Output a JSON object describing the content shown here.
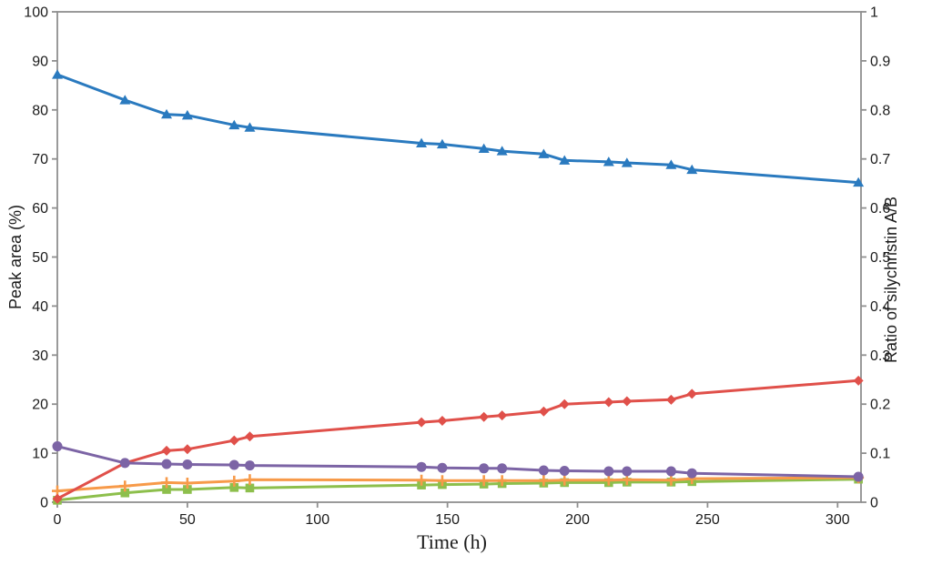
{
  "figure": {
    "background": "#ffffff",
    "axis_line_color": "#8f8f8f",
    "tick_text_color": "#1c1c1c"
  },
  "chart_data": {
    "type": "line",
    "title": "",
    "xlabel": "Time (h)",
    "ylabel_left": "Peak area (%)",
    "ylabel_right": "Ratio of silychristin A/B",
    "xlim": [
      0,
      309
    ],
    "ylim_left": [
      0,
      100
    ],
    "ylim_right": [
      0,
      1
    ],
    "grid": false,
    "legend": "none",
    "x_ticks": [
      0,
      50,
      100,
      150,
      200,
      250,
      300
    ],
    "y_ticks_left": [
      "0",
      "10",
      "20",
      "30",
      "40",
      "50",
      "60",
      "70",
      "80",
      "90",
      "100"
    ],
    "y_ticks_right": [
      "0",
      "0.1",
      "0.2",
      "0.3",
      "0.4",
      "0.5",
      "0.6",
      "0.7",
      "0.8",
      "0.9",
      "1"
    ],
    "x": [
      0,
      26,
      42,
      50,
      68,
      74,
      140,
      148,
      164,
      171,
      187,
      195,
      212,
      219,
      236,
      244,
      308
    ],
    "series": [
      {
        "name": "green-square-series",
        "marker": "square",
        "color": "#8DBF4C",
        "axis": "left",
        "values": [
          0.4,
          1.9,
          2.6,
          2.6,
          3.0,
          2.9,
          3.5,
          3.6,
          3.7,
          3.8,
          3.9,
          4.0,
          4.0,
          4.1,
          4.1,
          4.2,
          4.7
        ]
      },
      {
        "name": "orange-plus-series",
        "marker": "plus",
        "color": "#F79A49",
        "axis": "left",
        "values": [
          2.3,
          3.3,
          4.0,
          3.9,
          4.3,
          4.6,
          4.5,
          4.4,
          4.4,
          4.4,
          4.4,
          4.5,
          4.5,
          4.6,
          4.5,
          4.8,
          5.0
        ]
      },
      {
        "name": "red-diamond-series",
        "marker": "diamond",
        "color": "#E0504A",
        "axis": "left",
        "values": [
          0.7,
          8.0,
          10.5,
          10.8,
          12.6,
          13.4,
          16.3,
          16.6,
          17.4,
          17.7,
          18.5,
          20.0,
          20.4,
          20.6,
          20.9,
          22.1,
          24.8
        ]
      },
      {
        "name": "purple-circle-series",
        "marker": "circle",
        "color": "#7C64A5",
        "axis": "left",
        "values": [
          11.4,
          8.0,
          7.8,
          7.7,
          7.6,
          7.5,
          7.2,
          7.0,
          6.9,
          6.9,
          6.5,
          6.4,
          6.3,
          6.3,
          6.3,
          5.9,
          5.2
        ]
      },
      {
        "name": "blue-triangle-series",
        "marker": "triangle",
        "color": "#2A7ABF",
        "axis": "left",
        "values": [
          87.2,
          82.0,
          79.1,
          78.9,
          76.9,
          76.4,
          73.2,
          73.0,
          72.1,
          71.6,
          71.0,
          69.7,
          69.4,
          69.2,
          68.8,
          67.8,
          65.2
        ]
      }
    ]
  }
}
